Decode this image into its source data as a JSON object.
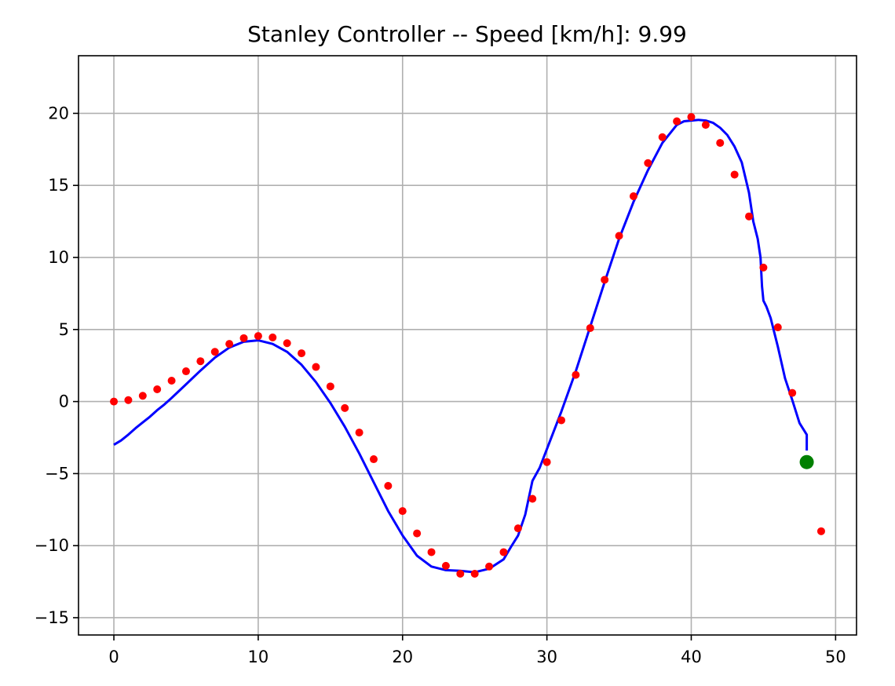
{
  "chart_data": {
    "type": "line",
    "title": "Stanley Controller -- Speed [km/h]: 9.99",
    "xlabel": "",
    "ylabel": "",
    "xlim": [
      -2.45,
      51.45
    ],
    "ylim": [
      -16.2,
      24.0
    ],
    "xticks": [
      0,
      10,
      20,
      30,
      40,
      50
    ],
    "xtick_labels": [
      "0",
      "10",
      "20",
      "30",
      "40",
      "50"
    ],
    "yticks": [
      -15,
      -10,
      -5,
      0,
      5,
      10,
      15,
      20
    ],
    "ytick_labels": [
      "−15",
      "−10",
      "−5",
      "0",
      "5",
      "10",
      "15",
      "20"
    ],
    "grid": true,
    "series": [
      {
        "kind": "scatter",
        "color": "#ff0000",
        "x": [
          0,
          1,
          2,
          3,
          4,
          5,
          6,
          7,
          8,
          9,
          10,
          11,
          12,
          13,
          14,
          15,
          16,
          17,
          18,
          19,
          20,
          21,
          22,
          23,
          24,
          25,
          26,
          27,
          28,
          29,
          30,
          31,
          32,
          33,
          34,
          35,
          36,
          37,
          38,
          39,
          40,
          41,
          42,
          43,
          44,
          45,
          46,
          47,
          49
        ],
        "y": [
          0,
          0.1,
          0.4,
          0.85,
          1.45,
          2.1,
          2.8,
          3.45,
          4.0,
          4.4,
          4.55,
          4.45,
          4.05,
          3.35,
          2.4,
          1.05,
          -0.45,
          -2.15,
          -4.0,
          -5.85,
          -7.6,
          -9.15,
          -10.45,
          -11.4,
          -11.95,
          -11.95,
          -11.45,
          -10.45,
          -8.8,
          -6.75,
          -4.2,
          -1.3,
          1.85,
          5.1,
          8.45,
          11.5,
          14.25,
          16.55,
          18.35,
          19.45,
          19.75,
          19.2,
          17.95,
          15.75,
          12.85,
          9.3,
          5.15,
          0.6,
          -9.0
        ]
      },
      {
        "kind": "line",
        "color": "#0000ff",
        "x": [
          0,
          0.5,
          1,
          1.5,
          2,
          2.5,
          3,
          3.5,
          4,
          5,
          6,
          7,
          8,
          9,
          10,
          11,
          12,
          13,
          14,
          15,
          16,
          17,
          18,
          19,
          20,
          21,
          22,
          23,
          24,
          25,
          26,
          27,
          27.5,
          28,
          28.5,
          29,
          29.5,
          30,
          31,
          32,
          33,
          34,
          35,
          36,
          37,
          38,
          39,
          39.5,
          40,
          40.5,
          41,
          41.5,
          42,
          42.5,
          43,
          43.5,
          44,
          44.3,
          44.6,
          44.8,
          44.9,
          45,
          45.2,
          45.5,
          46,
          46.5,
          47,
          47.5,
          48,
          48,
          48
        ],
        "y": [
          -3.0,
          -2.7,
          -2.3,
          -1.85,
          -1.45,
          -1.05,
          -0.6,
          -0.2,
          0.25,
          1.2,
          2.15,
          3.05,
          3.75,
          4.15,
          4.25,
          4.0,
          3.45,
          2.55,
          1.35,
          -0.1,
          -1.75,
          -3.6,
          -5.6,
          -7.6,
          -9.3,
          -10.7,
          -11.45,
          -11.7,
          -11.75,
          -11.85,
          -11.6,
          -10.95,
          -10.1,
          -9.3,
          -7.85,
          -5.5,
          -4.6,
          -3.3,
          -0.7,
          2.1,
          5.2,
          8.3,
          11.3,
          13.85,
          16.05,
          17.95,
          19.2,
          19.45,
          19.5,
          19.55,
          19.5,
          19.35,
          19.0,
          18.5,
          17.7,
          16.6,
          14.5,
          12.5,
          11.3,
          10.0,
          8.0,
          7.0,
          6.6,
          5.8,
          3.8,
          1.6,
          0.1,
          -1.5,
          -2.3,
          -2.8,
          -3.4
        ]
      },
      {
        "kind": "marker",
        "color": "#008000",
        "x": [
          48
        ],
        "y": [
          -4.2
        ]
      }
    ]
  }
}
